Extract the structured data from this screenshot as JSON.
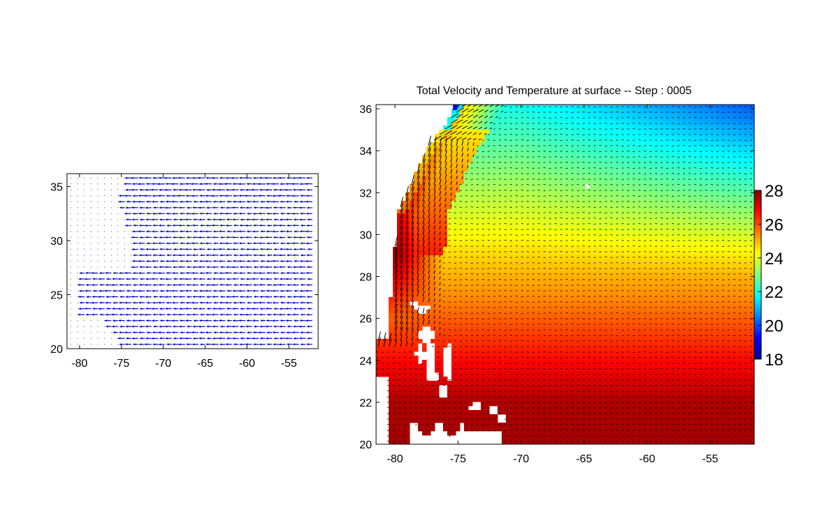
{
  "chart_data": [
    {
      "type": "quiver",
      "title": "",
      "xlabel": "",
      "ylabel": "",
      "xlim": [
        -81.5,
        -51.5
      ],
      "ylim": [
        20,
        36.2
      ],
      "xticks": [
        -80,
        -75,
        -70,
        -65,
        -60,
        -55
      ],
      "yticks": [
        20,
        25,
        30,
        35
      ],
      "xticklabels": [
        "-80",
        "-75",
        "-70",
        "-65",
        "-60",
        "-55"
      ],
      "yticklabels": [
        "20",
        "25",
        "30",
        "35"
      ],
      "arrow_color": "#0000cc",
      "grid": false,
      "field": {
        "x_start": -81,
        "x_step": 0.8,
        "x_count": 37,
        "y_start": 20.4,
        "y_step": 0.55,
        "y_count": 29,
        "description_rows": [
          {
            "y": 35.5,
            "x_min": -74,
            "u": -1.0
          },
          {
            "y": 21.0,
            "x_min": -75,
            "u": -1.0
          }
        ]
      }
    },
    {
      "type": "heatmap",
      "title": "Total Velocity and Temperature at surface -- Step : 0005",
      "xlabel": "",
      "ylabel": "",
      "xlim": [
        -81.5,
        -51.5
      ],
      "ylim": [
        20,
        36.2
      ],
      "xticks": [
        -80,
        -75,
        -70,
        -65,
        -60,
        -55
      ],
      "yticks": [
        20,
        22,
        24,
        26,
        28,
        30,
        32,
        34,
        36
      ],
      "xticklabels": [
        "-80",
        "-75",
        "-70",
        "-65",
        "-60",
        "-55"
      ],
      "yticklabels": [
        "20",
        "22",
        "24",
        "26",
        "28",
        "30",
        "32",
        "34",
        "36"
      ],
      "colorbar": {
        "range": [
          18,
          28
        ],
        "ticks": [
          18,
          20,
          22,
          24,
          26,
          28
        ],
        "ticklabels": [
          "18",
          "20",
          "22",
          "24",
          "26",
          "28"
        ],
        "colormap": "jet"
      },
      "temperature_samples": [
        {
          "lon": -55,
          "lat": 36,
          "temp": 22.2
        },
        {
          "lon": -70,
          "lat": 34,
          "temp": 23.2
        },
        {
          "lon": -65,
          "lat": 30,
          "temp": 24.6
        },
        {
          "lon": -60,
          "lat": 26,
          "temp": 26.0
        },
        {
          "lon": -65,
          "lat": 22,
          "temp": 27.0
        },
        {
          "lon": -78,
          "lat": 30,
          "temp": 27.5
        }
      ],
      "quiver_color": "#000000"
    }
  ]
}
